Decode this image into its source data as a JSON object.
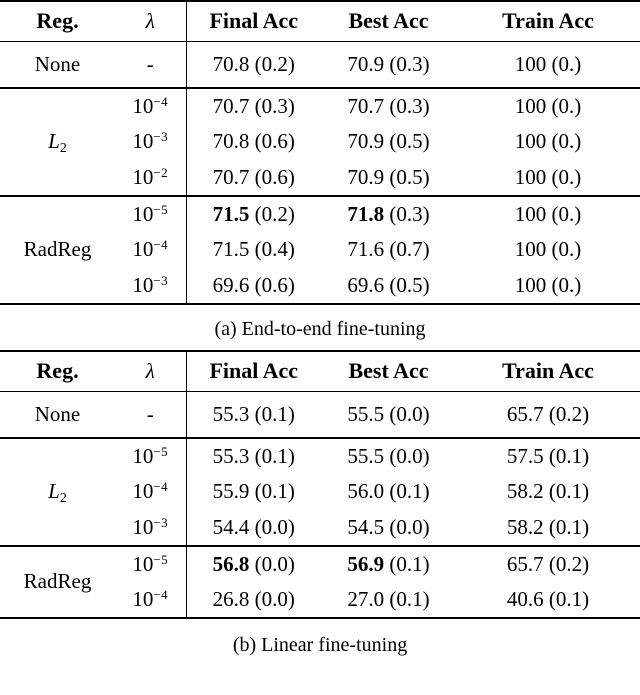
{
  "page": {
    "background": "#ffffff",
    "text_color": "#000000",
    "rule_color": "#000000"
  },
  "tables": [
    {
      "caption": "(a) End-to-end fine-tuning",
      "columns": [
        {
          "name": "reg",
          "label": "Reg."
        },
        {
          "name": "lambda",
          "label": "λ"
        },
        {
          "name": "final",
          "label": "Final Acc"
        },
        {
          "name": "best",
          "label": "Best Acc"
        },
        {
          "name": "train",
          "label": "Train Acc"
        }
      ],
      "groups": [
        {
          "reg": {
            "main": "None"
          },
          "rows": [
            {
              "lambda": {
                "text": "-"
              },
              "cells": [
                {
                  "mean": "70.8",
                  "std": "(0.2)",
                  "bold": false
                },
                {
                  "mean": "70.9",
                  "std": "(0.3)",
                  "bold": false
                },
                {
                  "mean": "100",
                  "std": "(0.)",
                  "bold": false
                }
              ]
            }
          ]
        },
        {
          "reg": {
            "main": "L",
            "sub": "2",
            "italic": true
          },
          "rows": [
            {
              "lambda": {
                "base": "10",
                "exp": "−4"
              },
              "cells": [
                {
                  "mean": "70.7",
                  "std": "(0.3)",
                  "bold": false
                },
                {
                  "mean": "70.7",
                  "std": "(0.3)",
                  "bold": false
                },
                {
                  "mean": "100",
                  "std": "(0.)",
                  "bold": false
                }
              ]
            },
            {
              "lambda": {
                "base": "10",
                "exp": "−3"
              },
              "cells": [
                {
                  "mean": "70.8",
                  "std": "(0.6)",
                  "bold": false
                },
                {
                  "mean": "70.9",
                  "std": "(0.5)",
                  "bold": false
                },
                {
                  "mean": "100",
                  "std": "(0.)",
                  "bold": false
                }
              ]
            },
            {
              "lambda": {
                "base": "10",
                "exp": "−2"
              },
              "cells": [
                {
                  "mean": "70.7",
                  "std": "(0.6)",
                  "bold": false
                },
                {
                  "mean": "70.9",
                  "std": "(0.5)",
                  "bold": false
                },
                {
                  "mean": "100",
                  "std": "(0.)",
                  "bold": false
                }
              ]
            }
          ]
        },
        {
          "reg": {
            "main": "RadReg"
          },
          "rows": [
            {
              "lambda": {
                "base": "10",
                "exp": "−5"
              },
              "cells": [
                {
                  "mean": "71.5",
                  "std": "(0.2)",
                  "bold": true
                },
                {
                  "mean": "71.8",
                  "std": "(0.3)",
                  "bold": true
                },
                {
                  "mean": "100",
                  "std": "(0.)",
                  "bold": false
                }
              ]
            },
            {
              "lambda": {
                "base": "10",
                "exp": "−4"
              },
              "cells": [
                {
                  "mean": "71.5",
                  "std": "(0.4)",
                  "bold": false
                },
                {
                  "mean": "71.6",
                  "std": "(0.7)",
                  "bold": false
                },
                {
                  "mean": "100",
                  "std": "(0.)",
                  "bold": false
                }
              ]
            },
            {
              "lambda": {
                "base": "10",
                "exp": "−3"
              },
              "cells": [
                {
                  "mean": "69.6",
                  "std": "(0.6)",
                  "bold": false
                },
                {
                  "mean": "69.6",
                  "std": "(0.5)",
                  "bold": false
                },
                {
                  "mean": "100",
                  "std": "(0.)",
                  "bold": false
                }
              ]
            }
          ]
        }
      ]
    },
    {
      "caption": "(b) Linear fine-tuning",
      "columns": [
        {
          "name": "reg",
          "label": "Reg."
        },
        {
          "name": "lambda",
          "label": "λ"
        },
        {
          "name": "final",
          "label": "Final Acc"
        },
        {
          "name": "best",
          "label": "Best Acc"
        },
        {
          "name": "train",
          "label": "Train Acc"
        }
      ],
      "groups": [
        {
          "reg": {
            "main": "None"
          },
          "rows": [
            {
              "lambda": {
                "text": "-"
              },
              "cells": [
                {
                  "mean": "55.3",
                  "std": "(0.1)",
                  "bold": false
                },
                {
                  "mean": "55.5",
                  "std": "(0.0)",
                  "bold": false
                },
                {
                  "mean": "65.7",
                  "std": "(0.2)",
                  "bold": false
                }
              ]
            }
          ]
        },
        {
          "reg": {
            "main": "L",
            "sub": "2",
            "italic": true
          },
          "rows": [
            {
              "lambda": {
                "base": "10",
                "exp": "−5"
              },
              "cells": [
                {
                  "mean": "55.3",
                  "std": "(0.1)",
                  "bold": false
                },
                {
                  "mean": "55.5",
                  "std": "(0.0)",
                  "bold": false
                },
                {
                  "mean": "57.5",
                  "std": "(0.1)",
                  "bold": false
                }
              ]
            },
            {
              "lambda": {
                "base": "10",
                "exp": "−4"
              },
              "cells": [
                {
                  "mean": "55.9",
                  "std": "(0.1)",
                  "bold": false
                },
                {
                  "mean": "56.0",
                  "std": "(0.1)",
                  "bold": false
                },
                {
                  "mean": "58.2",
                  "std": "(0.1)",
                  "bold": false
                }
              ]
            },
            {
              "lambda": {
                "base": "10",
                "exp": "−3"
              },
              "cells": [
                {
                  "mean": "54.4",
                  "std": "(0.0)",
                  "bold": false
                },
                {
                  "mean": "54.5",
                  "std": "(0.0)",
                  "bold": false
                },
                {
                  "mean": "58.2",
                  "std": "(0.1)",
                  "bold": false
                }
              ]
            }
          ]
        },
        {
          "reg": {
            "main": "RadReg"
          },
          "rows": [
            {
              "lambda": {
                "base": "10",
                "exp": "−5"
              },
              "cells": [
                {
                  "mean": "56.8",
                  "std": "(0.0)",
                  "bold": true
                },
                {
                  "mean": "56.9",
                  "std": "(0.1)",
                  "bold": true
                },
                {
                  "mean": "65.7",
                  "std": "(0.2)",
                  "bold": false
                }
              ]
            },
            {
              "lambda": {
                "base": "10",
                "exp": "−4"
              },
              "cells": [
                {
                  "mean": "26.8",
                  "std": "(0.0)",
                  "bold": false
                },
                {
                  "mean": "27.0",
                  "std": "(0.1)",
                  "bold": false
                },
                {
                  "mean": "40.6",
                  "std": "(0.1)",
                  "bold": false
                }
              ]
            }
          ]
        }
      ]
    }
  ]
}
